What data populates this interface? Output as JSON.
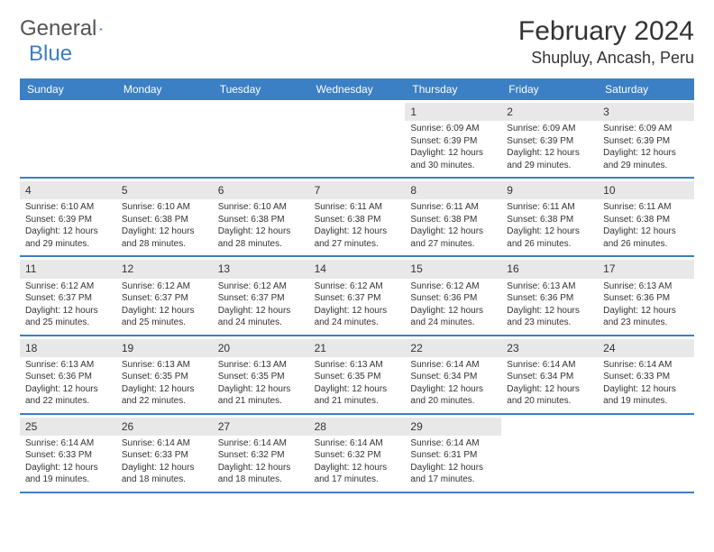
{
  "logo": {
    "text1": "General",
    "text2": "Blue"
  },
  "title": "February 2024",
  "location": "Shupluy, Ancash, Peru",
  "colors": {
    "header_bg": "#3b7fc4",
    "header_text": "#ffffff",
    "daynum_bg": "#e8e8e8",
    "border": "#3b7fc4",
    "body_text": "#333333"
  },
  "day_names": [
    "Sunday",
    "Monday",
    "Tuesday",
    "Wednesday",
    "Thursday",
    "Friday",
    "Saturday"
  ],
  "weeks": [
    [
      {
        "n": "",
        "l1": "",
        "l2": "",
        "l3": "",
        "l4": ""
      },
      {
        "n": "",
        "l1": "",
        "l2": "",
        "l3": "",
        "l4": ""
      },
      {
        "n": "",
        "l1": "",
        "l2": "",
        "l3": "",
        "l4": ""
      },
      {
        "n": "",
        "l1": "",
        "l2": "",
        "l3": "",
        "l4": ""
      },
      {
        "n": "1",
        "l1": "Sunrise: 6:09 AM",
        "l2": "Sunset: 6:39 PM",
        "l3": "Daylight: 12 hours",
        "l4": "and 30 minutes."
      },
      {
        "n": "2",
        "l1": "Sunrise: 6:09 AM",
        "l2": "Sunset: 6:39 PM",
        "l3": "Daylight: 12 hours",
        "l4": "and 29 minutes."
      },
      {
        "n": "3",
        "l1": "Sunrise: 6:09 AM",
        "l2": "Sunset: 6:39 PM",
        "l3": "Daylight: 12 hours",
        "l4": "and 29 minutes."
      }
    ],
    [
      {
        "n": "4",
        "l1": "Sunrise: 6:10 AM",
        "l2": "Sunset: 6:39 PM",
        "l3": "Daylight: 12 hours",
        "l4": "and 29 minutes."
      },
      {
        "n": "5",
        "l1": "Sunrise: 6:10 AM",
        "l2": "Sunset: 6:38 PM",
        "l3": "Daylight: 12 hours",
        "l4": "and 28 minutes."
      },
      {
        "n": "6",
        "l1": "Sunrise: 6:10 AM",
        "l2": "Sunset: 6:38 PM",
        "l3": "Daylight: 12 hours",
        "l4": "and 28 minutes."
      },
      {
        "n": "7",
        "l1": "Sunrise: 6:11 AM",
        "l2": "Sunset: 6:38 PM",
        "l3": "Daylight: 12 hours",
        "l4": "and 27 minutes."
      },
      {
        "n": "8",
        "l1": "Sunrise: 6:11 AM",
        "l2": "Sunset: 6:38 PM",
        "l3": "Daylight: 12 hours",
        "l4": "and 27 minutes."
      },
      {
        "n": "9",
        "l1": "Sunrise: 6:11 AM",
        "l2": "Sunset: 6:38 PM",
        "l3": "Daylight: 12 hours",
        "l4": "and 26 minutes."
      },
      {
        "n": "10",
        "l1": "Sunrise: 6:11 AM",
        "l2": "Sunset: 6:38 PM",
        "l3": "Daylight: 12 hours",
        "l4": "and 26 minutes."
      }
    ],
    [
      {
        "n": "11",
        "l1": "Sunrise: 6:12 AM",
        "l2": "Sunset: 6:37 PM",
        "l3": "Daylight: 12 hours",
        "l4": "and 25 minutes."
      },
      {
        "n": "12",
        "l1": "Sunrise: 6:12 AM",
        "l2": "Sunset: 6:37 PM",
        "l3": "Daylight: 12 hours",
        "l4": "and 25 minutes."
      },
      {
        "n": "13",
        "l1": "Sunrise: 6:12 AM",
        "l2": "Sunset: 6:37 PM",
        "l3": "Daylight: 12 hours",
        "l4": "and 24 minutes."
      },
      {
        "n": "14",
        "l1": "Sunrise: 6:12 AM",
        "l2": "Sunset: 6:37 PM",
        "l3": "Daylight: 12 hours",
        "l4": "and 24 minutes."
      },
      {
        "n": "15",
        "l1": "Sunrise: 6:12 AM",
        "l2": "Sunset: 6:36 PM",
        "l3": "Daylight: 12 hours",
        "l4": "and 24 minutes."
      },
      {
        "n": "16",
        "l1": "Sunrise: 6:13 AM",
        "l2": "Sunset: 6:36 PM",
        "l3": "Daylight: 12 hours",
        "l4": "and 23 minutes."
      },
      {
        "n": "17",
        "l1": "Sunrise: 6:13 AM",
        "l2": "Sunset: 6:36 PM",
        "l3": "Daylight: 12 hours",
        "l4": "and 23 minutes."
      }
    ],
    [
      {
        "n": "18",
        "l1": "Sunrise: 6:13 AM",
        "l2": "Sunset: 6:36 PM",
        "l3": "Daylight: 12 hours",
        "l4": "and 22 minutes."
      },
      {
        "n": "19",
        "l1": "Sunrise: 6:13 AM",
        "l2": "Sunset: 6:35 PM",
        "l3": "Daylight: 12 hours",
        "l4": "and 22 minutes."
      },
      {
        "n": "20",
        "l1": "Sunrise: 6:13 AM",
        "l2": "Sunset: 6:35 PM",
        "l3": "Daylight: 12 hours",
        "l4": "and 21 minutes."
      },
      {
        "n": "21",
        "l1": "Sunrise: 6:13 AM",
        "l2": "Sunset: 6:35 PM",
        "l3": "Daylight: 12 hours",
        "l4": "and 21 minutes."
      },
      {
        "n": "22",
        "l1": "Sunrise: 6:14 AM",
        "l2": "Sunset: 6:34 PM",
        "l3": "Daylight: 12 hours",
        "l4": "and 20 minutes."
      },
      {
        "n": "23",
        "l1": "Sunrise: 6:14 AM",
        "l2": "Sunset: 6:34 PM",
        "l3": "Daylight: 12 hours",
        "l4": "and 20 minutes."
      },
      {
        "n": "24",
        "l1": "Sunrise: 6:14 AM",
        "l2": "Sunset: 6:33 PM",
        "l3": "Daylight: 12 hours",
        "l4": "and 19 minutes."
      }
    ],
    [
      {
        "n": "25",
        "l1": "Sunrise: 6:14 AM",
        "l2": "Sunset: 6:33 PM",
        "l3": "Daylight: 12 hours",
        "l4": "and 19 minutes."
      },
      {
        "n": "26",
        "l1": "Sunrise: 6:14 AM",
        "l2": "Sunset: 6:33 PM",
        "l3": "Daylight: 12 hours",
        "l4": "and 18 minutes."
      },
      {
        "n": "27",
        "l1": "Sunrise: 6:14 AM",
        "l2": "Sunset: 6:32 PM",
        "l3": "Daylight: 12 hours",
        "l4": "and 18 minutes."
      },
      {
        "n": "28",
        "l1": "Sunrise: 6:14 AM",
        "l2": "Sunset: 6:32 PM",
        "l3": "Daylight: 12 hours",
        "l4": "and 17 minutes."
      },
      {
        "n": "29",
        "l1": "Sunrise: 6:14 AM",
        "l2": "Sunset: 6:31 PM",
        "l3": "Daylight: 12 hours",
        "l4": "and 17 minutes."
      },
      {
        "n": "",
        "l1": "",
        "l2": "",
        "l3": "",
        "l4": ""
      },
      {
        "n": "",
        "l1": "",
        "l2": "",
        "l3": "",
        "l4": ""
      }
    ]
  ]
}
